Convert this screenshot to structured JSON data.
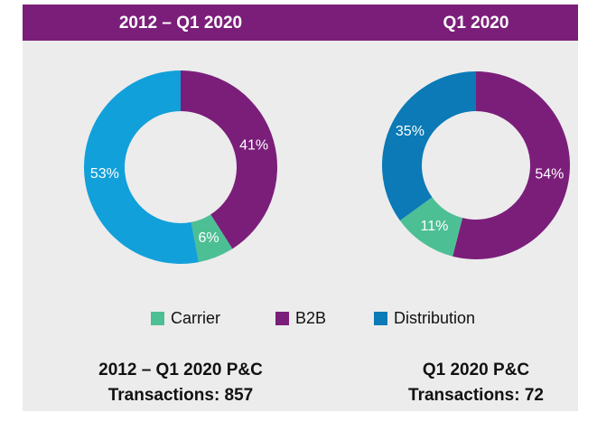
{
  "chart_data": [
    {
      "type": "pie",
      "title": "2012 – Q1 2020",
      "slices": [
        "B2B",
        "Carrier",
        "Distribution"
      ],
      "values": [
        41,
        6,
        53
      ],
      "value_labels": [
        "41%",
        "6%",
        "53%"
      ],
      "colors": [
        "#7b1e7a",
        "#4dbf95",
        "#12a0da"
      ],
      "footer": [
        "2012 – Q1 2020 P&C",
        "Transactions: 857"
      ]
    },
    {
      "type": "pie",
      "title": "Q1 2020",
      "slices": [
        "B2B",
        "Carrier",
        "Distribution"
      ],
      "values": [
        54,
        11,
        35
      ],
      "value_labels": [
        "54%",
        "11%",
        "35%"
      ],
      "colors": [
        "#7b1e7a",
        "#4dbf95",
        "#0b7ab6"
      ],
      "footer": [
        "Q1 2020 P&C",
        "Transactions: 72"
      ]
    }
  ],
  "legend": [
    {
      "name": "Carrier",
      "color": "#4dbf95"
    },
    {
      "name": "B2B",
      "color": "#7b1e7a"
    },
    {
      "name": "Distribution",
      "color": "#0b7ab6"
    }
  ]
}
